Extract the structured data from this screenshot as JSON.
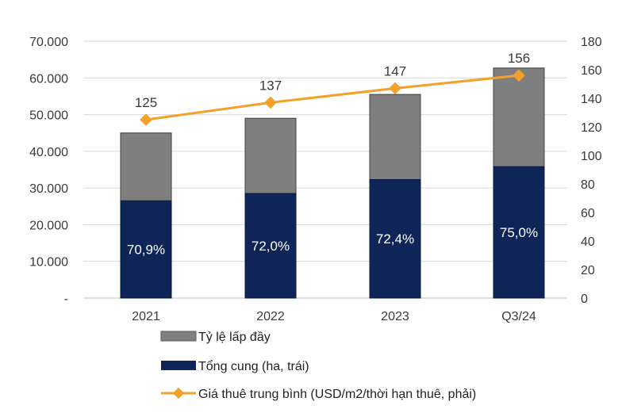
{
  "chart_data": {
    "type": "bar",
    "categories": [
      "2021",
      "2022",
      "2023",
      "Q3/24"
    ],
    "series": [
      {
        "name": "Tổng cung (ha, trái)",
        "kind": "stacked-bar",
        "axis": "left",
        "color": "#0f2557",
        "values": [
          26500,
          28500,
          32300,
          35800
        ],
        "labels": [
          "70,9%",
          "72,0%",
          "72,4%",
          "75,0%"
        ]
      },
      {
        "name": "Tỷ lệ lấp đầy",
        "kind": "stacked-bar",
        "axis": "left",
        "color": "#7f7f7f",
        "values": [
          18500,
          20500,
          23200,
          26900
        ]
      },
      {
        "name": "Giá thuê trung bình (USD/m2/thời hạn thuê, phải)",
        "kind": "line",
        "axis": "right",
        "color": "#f4a029",
        "values": [
          125,
          137,
          147,
          156
        ],
        "labels": [
          "125",
          "137",
          "147",
          "156"
        ]
      }
    ],
    "left_axis": {
      "ylim": [
        0,
        70000
      ],
      "tick_labels": [
        "-",
        "10.000",
        "20.000",
        "30.000",
        "40.000",
        "50.000",
        "60.000",
        "70.000"
      ]
    },
    "right_axis": {
      "ylim": [
        0,
        180
      ],
      "tick_labels": [
        "0",
        "20",
        "40",
        "60",
        "80",
        "100",
        "120",
        "140",
        "160",
        "180"
      ]
    },
    "grid": true,
    "legend_position": "bottom"
  }
}
